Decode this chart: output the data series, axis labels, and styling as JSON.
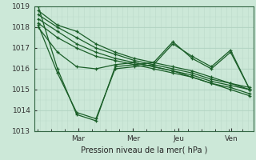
{
  "xlabel": "Pression niveau de la mer( hPa )",
  "bg_color": "#cce8d8",
  "plot_bg_color": "#cce8d8",
  "grid_color_major": "#aacfbc",
  "grid_color_minor": "#bddacb",
  "line_color": "#1a5e28",
  "ylim": [
    1013,
    1019
  ],
  "yticks": [
    1013,
    1014,
    1015,
    1016,
    1017,
    1018,
    1019
  ],
  "xtick_labels": [
    "Mar",
    "Mer",
    "Jeu",
    "Ven"
  ],
  "series": [
    [
      1018.8,
      1018.1,
      1017.8,
      1017.2,
      1016.8,
      1016.5,
      1016.3,
      1016.1,
      1015.9,
      1015.6,
      1015.3,
      1015.0
    ],
    [
      1018.6,
      1018.0,
      1017.5,
      1017.0,
      1016.7,
      1016.4,
      1016.2,
      1016.0,
      1015.8,
      1015.5,
      1015.3,
      1015.1
    ],
    [
      1018.4,
      1017.8,
      1017.2,
      1016.8,
      1016.5,
      1016.3,
      1016.1,
      1015.9,
      1015.7,
      1015.4,
      1015.2,
      1015.0
    ],
    [
      1018.2,
      1017.5,
      1017.0,
      1016.6,
      1016.4,
      1016.2,
      1016.0,
      1015.8,
      1015.6,
      1015.3,
      1015.1,
      1014.8
    ],
    [
      1018.0,
      1016.8,
      1016.1,
      1016.0,
      1016.2,
      1016.3,
      1016.1,
      1015.9,
      1015.6,
      1015.3,
      1015.0,
      1014.7
    ],
    [
      1018.1,
      1015.8,
      1013.9,
      1013.6,
      1016.0,
      1016.1,
      1016.2,
      1017.2,
      1016.6,
      1016.1,
      1016.9,
      1015.0
    ],
    [
      1019.0,
      1016.0,
      1013.8,
      1013.5,
      1016.1,
      1016.2,
      1016.3,
      1017.3,
      1016.5,
      1016.0,
      1016.8,
      1015.0
    ]
  ]
}
